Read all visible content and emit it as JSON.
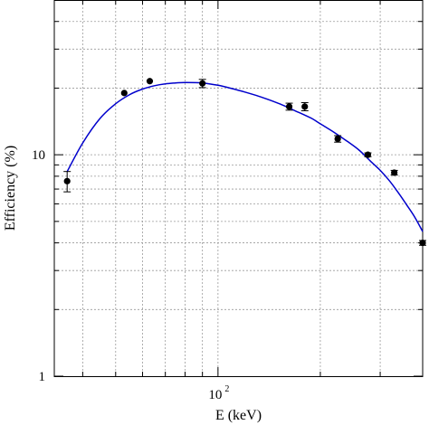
{
  "chart_data": {
    "type": "scatter",
    "xlabel": "E (keV)",
    "ylabel": "Efficiency (%)",
    "x_scale": "log",
    "y_scale": "log",
    "xlim": [
      33,
      400
    ],
    "ylim": [
      1,
      50
    ],
    "grid": true,
    "x_tick_labels": [
      {
        "value": 100,
        "base": "10",
        "exponent": "2"
      }
    ],
    "y_tick_labels": [
      {
        "value": 1,
        "text": "1"
      },
      {
        "value": 10,
        "text": "10"
      }
    ],
    "colors": {
      "fit": "#0000cc",
      "points": "#000000",
      "grid": "#9a9a9a"
    },
    "series": [
      {
        "kind": "points",
        "x": [
          36,
          53,
          63,
          90,
          162,
          180,
          225,
          276,
          330,
          400
        ],
        "y": [
          7.6,
          19.0,
          21.5,
          21.0,
          16.5,
          16.5,
          11.8,
          10.0,
          8.3,
          4.0
        ],
        "yerr": [
          0.8,
          0.3,
          0.3,
          0.9,
          0.6,
          0.7,
          0.4,
          0.2,
          0.2,
          0.1
        ]
      },
      {
        "kind": "fit-curve",
        "x": [
          36,
          40,
          45,
          50,
          55,
          60,
          65,
          70,
          75,
          80,
          90,
          100,
          110,
          120,
          130,
          140,
          150,
          160,
          170,
          180,
          190,
          200,
          220,
          240,
          260,
          280,
          300,
          320,
          340,
          360,
          380,
          400
        ],
        "y": [
          8.4,
          11.3,
          14.6,
          17.0,
          18.7,
          19.8,
          20.5,
          20.9,
          21.1,
          21.2,
          21.1,
          20.6,
          19.9,
          19.2,
          18.5,
          17.8,
          17.1,
          16.4,
          15.7,
          15.1,
          14.5,
          13.8,
          12.6,
          11.5,
          10.5,
          9.4,
          8.5,
          7.6,
          6.7,
          5.9,
          5.2,
          4.5
        ]
      }
    ]
  }
}
